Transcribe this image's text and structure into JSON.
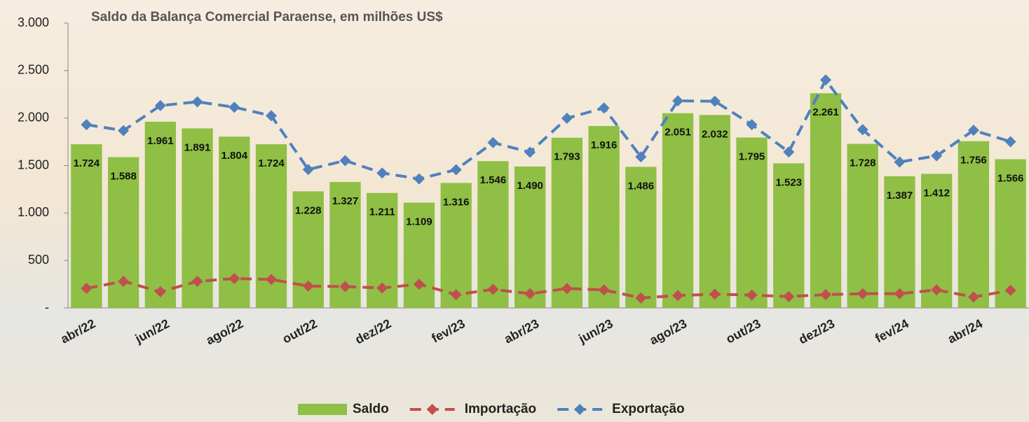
{
  "chart_data": {
    "type": "bar-line",
    "title": "Saldo da Balança Comercial Paraense, em milhões US$",
    "categories": [
      "abr/22",
      null,
      "jun/22",
      null,
      "ago/22",
      null,
      "out/22",
      null,
      "dez/22",
      null,
      "fev/23",
      null,
      "abr/23",
      null,
      "jun/23",
      null,
      "ago/23",
      null,
      "out/23",
      null,
      "dez/23",
      null,
      "fev/24",
      null,
      "abr/24",
      null
    ],
    "series": [
      {
        "name": "Saldo",
        "color": "#8fbf45",
        "kind": "bar",
        "values": [
          1724,
          1588,
          1961,
          1891,
          1804,
          1724,
          1228,
          1327,
          1211,
          1109,
          1316,
          1546,
          1490,
          1793,
          1916,
          1486,
          2051,
          2032,
          1795,
          1523,
          2261,
          1728,
          1387,
          1412,
          1756,
          1566
        ],
        "value_labels": [
          "1.724",
          "1.588",
          "1.961",
          "1.891",
          "1.804",
          "1.724",
          "1.228",
          "1.327",
          "1.211",
          "1.109",
          "1.316",
          "1.546",
          "1.490",
          "1.793",
          "1.916",
          "1.486",
          "2.051",
          "2.032",
          "1.795",
          "1.523",
          "2.261",
          "1.728",
          "1.387",
          "1.412",
          "1.756",
          "1.566"
        ]
      },
      {
        "name": "Importação",
        "color": "#c0504d",
        "kind": "line",
        "values": [
          206,
          280,
          170,
          280,
          310,
          300,
          230,
          225,
          210,
          250,
          140,
          195,
          150,
          205,
          190,
          105,
          130,
          145,
          135,
          120,
          140,
          150,
          150,
          190,
          115,
          185
        ]
      },
      {
        "name": "Exportação",
        "color": "#4f81bd",
        "kind": "line",
        "values": [
          1930,
          1868,
          2131,
          2171,
          2114,
          2024,
          1458,
          1552,
          1421,
          1359,
          1456,
          1741,
          1640,
          1998,
          2106,
          1591,
          2181,
          2177,
          1930,
          1643,
          2401,
          1878,
          1537,
          1602,
          1871,
          1751
        ]
      }
    ],
    "ylim": [
      0,
      3000
    ],
    "yticks": [
      {
        "value": 0,
        "label": "-"
      },
      500,
      {
        "value": 1000,
        "label": "1.000"
      },
      {
        "value": 1500,
        "label": "1.500"
      },
      {
        "value": 2000,
        "label": "2.000"
      },
      {
        "value": 2500,
        "label": "2.500"
      },
      {
        "value": 3000,
        "label": "3.000"
      }
    ],
    "legend": "bottom"
  }
}
